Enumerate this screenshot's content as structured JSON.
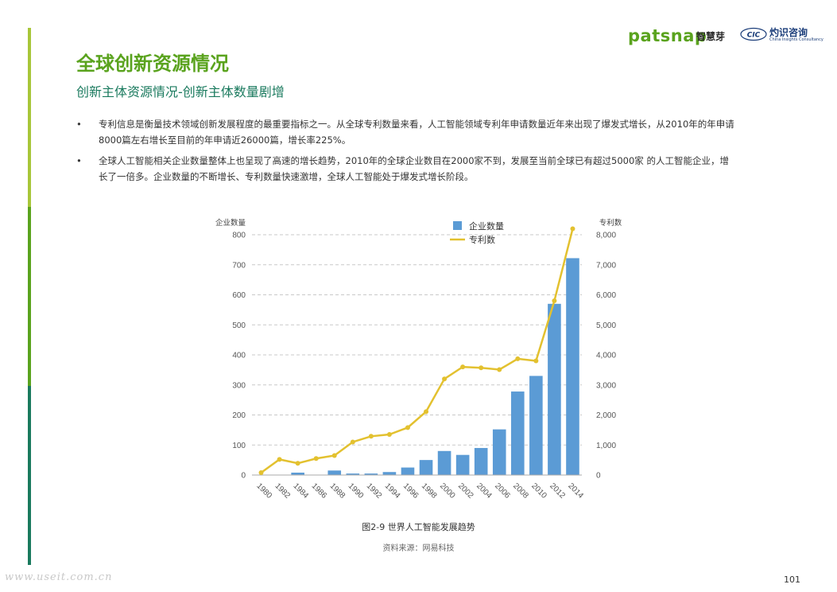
{
  "header": {
    "patsnap_logo": "patsnap",
    "patsnap_cn": "智慧芽",
    "cic_logo": "CIC",
    "cic_cn": "灼识咨询",
    "cic_en": "China Insights Consultancy",
    "brand_green": "#5aa31e",
    "brand_blue": "#1c3e7a"
  },
  "page": {
    "title": "全球创新资源情况",
    "subtitle": "创新主体资源情况-创新主体数量剧增",
    "bullets": [
      "专利信息是衡量技术领域创新发展程度的最重要指标之一。从全球专利数量来看，人工智能领域专利年申请数量近年来出现了爆发式增长，从2010年的年申请8000篇左右增长至目前的年申请近26000篇，增长率225%。",
      "全球人工智能相关企业数量整体上也呈现了高速的增长趋势，2010年的全球企业数目在2000家不到，发展至当前全球已有超过5000家  的人工智能企业，增长了一倍多。企业数量的不断增长、专利数量快速激增，全球人工智能处于爆发式增长阶段。"
    ],
    "bullet_symbol": "•",
    "caption": "图2-9 世界人工智能发展趋势",
    "source": "资料来源：网易科技",
    "page_number": "101",
    "watermark": "www.useit.com.cn"
  },
  "chart_data": {
    "type": "bar",
    "categories": [
      "1980",
      "1982",
      "1984",
      "1986",
      "1988",
      "1990",
      "1992",
      "1994",
      "1996",
      "1998",
      "2000",
      "2002",
      "2004",
      "2006",
      "2008",
      "2010",
      "2012",
      "2014"
    ],
    "series": [
      {
        "name": "企业数量",
        "type": "bar",
        "axis": "left",
        "color": "#5b9bd5",
        "values": [
          0,
          0,
          8,
          0,
          15,
          5,
          5,
          10,
          25,
          50,
          80,
          67,
          90,
          152,
          278,
          330,
          570,
          722
        ]
      },
      {
        "name": "专利数",
        "type": "line",
        "axis": "right",
        "color": "#e3c12f",
        "values": [
          80,
          520,
          390,
          550,
          650,
          1100,
          1290,
          1350,
          1580,
          2110,
          3200,
          3600,
          3570,
          3510,
          3870,
          3800,
          5800,
          8200
        ]
      }
    ],
    "ylabel_left": "企业数量",
    "ylabel_right": "专利数",
    "ylim_left": [
      0,
      800
    ],
    "ylim_right": [
      0,
      8000
    ],
    "yticks_left": [
      "0",
      "100",
      "200",
      "300",
      "400",
      "500",
      "600",
      "700",
      "800"
    ],
    "yticks_right": [
      "0",
      "1,000",
      "2,000",
      "3,000",
      "4,000",
      "5,000",
      "6,000",
      "7,000",
      "8,000"
    ],
    "grid": true,
    "legend_position": "top-center"
  }
}
